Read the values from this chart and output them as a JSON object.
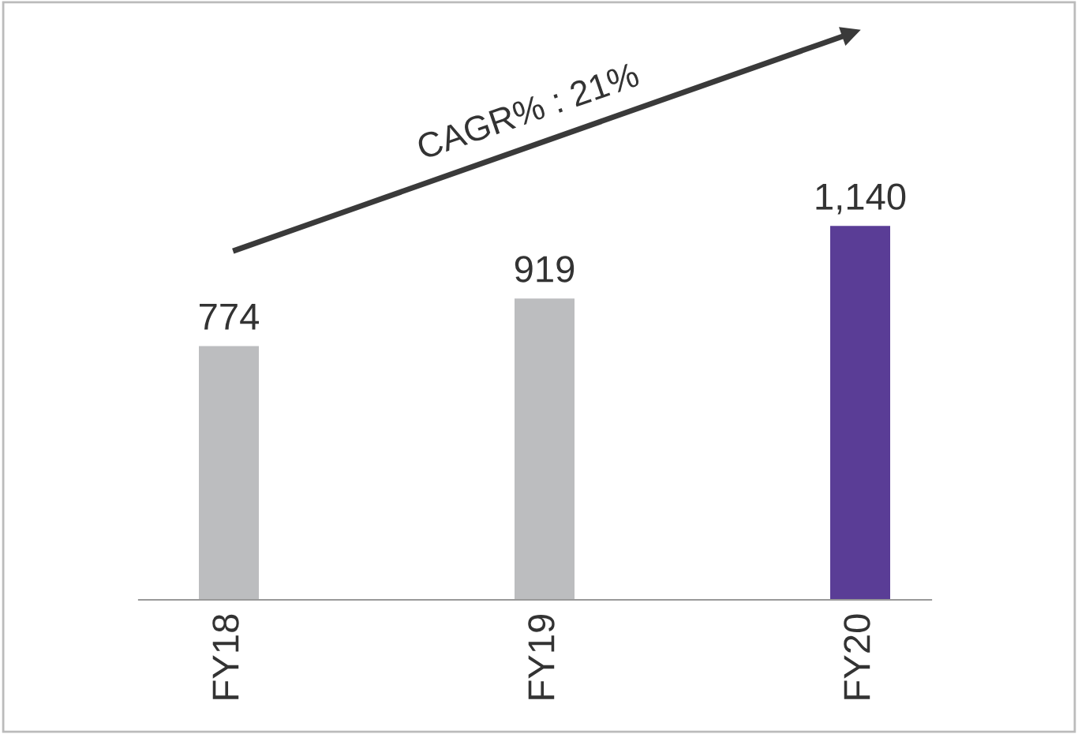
{
  "chart_data": {
    "type": "bar",
    "categories": [
      "FY18",
      "FY19",
      "FY20"
    ],
    "values": [
      774,
      919,
      1140
    ],
    "colors": [
      "#bcbdbf",
      "#bcbdbf",
      "#5a3d96"
    ],
    "data_labels": true,
    "value_labels": [
      "774",
      "919",
      "1,140"
    ],
    "annotations": [
      "CAGR% : 21%"
    ],
    "grid": false,
    "legend": false,
    "tick_labels": "x"
  }
}
